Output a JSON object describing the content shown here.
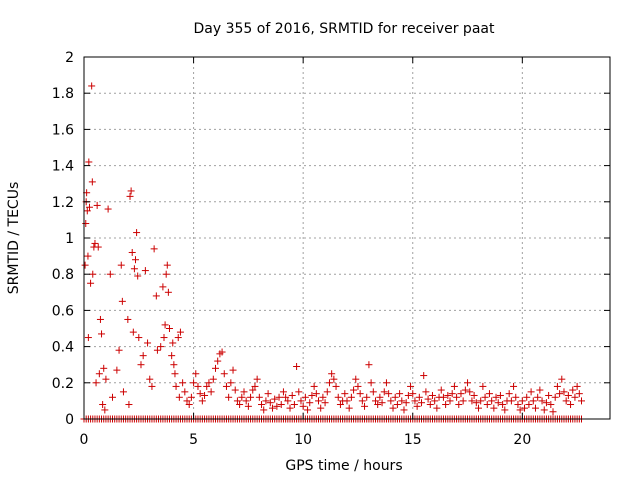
{
  "chart_data": {
    "type": "scatter",
    "title": "Day 355 of 2016, SRMTID for receiver paat",
    "xlabel": "GPS time / hours",
    "ylabel": "SRMTID / TECUs",
    "xlim": [
      0,
      24
    ],
    "ylim": [
      0,
      2
    ],
    "xticks": [
      0,
      5,
      10,
      15,
      20
    ],
    "yticks": [
      0,
      0.2,
      0.4,
      0.6,
      0.8,
      1,
      1.2,
      1.4,
      1.6,
      1.8,
      2
    ],
    "xtick_labels": [
      "0",
      "5",
      "10",
      "15",
      "20"
    ],
    "ytick_labels": [
      "0",
      "0.2",
      "0.4",
      "0.6",
      "0.8",
      "1",
      "1.2",
      "1.4",
      "1.6",
      "1.8",
      "2"
    ],
    "grid": true,
    "marker": "+",
    "color": "#cc0000",
    "series": [
      {
        "name": "SRMTID",
        "points": [
          [
            0.05,
            0.85
          ],
          [
            0.08,
            1.08
          ],
          [
            0.1,
            1.2
          ],
          [
            0.12,
            1.25
          ],
          [
            0.15,
            1.15
          ],
          [
            0.18,
            0.9
          ],
          [
            0.2,
            0.45
          ],
          [
            0.22,
            1.42
          ],
          [
            0.25,
            1.17
          ],
          [
            0.3,
            0.75
          ],
          [
            0.35,
            1.84
          ],
          [
            0.38,
            1.31
          ],
          [
            0.4,
            0.8
          ],
          [
            0.45,
            0.95
          ],
          [
            0.5,
            0.97
          ],
          [
            0.55,
            0.2
          ],
          [
            0.6,
            1.18
          ],
          [
            0.65,
            0.95
          ],
          [
            0.7,
            0.25
          ],
          [
            0.75,
            0.55
          ],
          [
            0.8,
            0.47
          ],
          [
            0.85,
            0.08
          ],
          [
            0.9,
            0.28
          ],
          [
            0.95,
            0.05
          ],
          [
            1.0,
            0.22
          ],
          [
            1.1,
            1.16
          ],
          [
            1.2,
            0.8
          ],
          [
            1.3,
            0.12
          ],
          [
            1.5,
            0.27
          ],
          [
            1.6,
            0.38
          ],
          [
            1.7,
            0.85
          ],
          [
            1.75,
            0.65
          ],
          [
            1.8,
            0.15
          ],
          [
            2.0,
            0.55
          ],
          [
            2.05,
            0.08
          ],
          [
            2.1,
            1.23
          ],
          [
            2.15,
            1.26
          ],
          [
            2.2,
            0.92
          ],
          [
            2.25,
            0.48
          ],
          [
            2.3,
            0.83
          ],
          [
            2.35,
            0.88
          ],
          [
            2.4,
            1.03
          ],
          [
            2.45,
            0.79
          ],
          [
            2.5,
            0.45
          ],
          [
            2.6,
            0.3
          ],
          [
            2.7,
            0.35
          ],
          [
            2.8,
            0.82
          ],
          [
            2.9,
            0.42
          ],
          [
            3.0,
            0.22
          ],
          [
            3.1,
            0.18
          ],
          [
            3.2,
            0.94
          ],
          [
            3.3,
            0.68
          ],
          [
            3.35,
            0.38
          ],
          [
            3.5,
            0.4
          ],
          [
            3.6,
            0.73
          ],
          [
            3.65,
            0.45
          ],
          [
            3.7,
            0.52
          ],
          [
            3.75,
            0.8
          ],
          [
            3.8,
            0.85
          ],
          [
            3.85,
            0.7
          ],
          [
            3.9,
            0.5
          ],
          [
            4.0,
            0.35
          ],
          [
            4.05,
            0.42
          ],
          [
            4.1,
            0.3
          ],
          [
            4.15,
            0.25
          ],
          [
            4.2,
            0.18
          ],
          [
            4.3,
            0.45
          ],
          [
            4.35,
            0.12
          ],
          [
            4.4,
            0.48
          ],
          [
            4.5,
            0.2
          ],
          [
            4.6,
            0.15
          ],
          [
            4.7,
            0.1
          ],
          [
            4.8,
            0.08
          ],
          [
            4.9,
            0.12
          ],
          [
            5.0,
            0.2
          ],
          [
            5.1,
            0.25
          ],
          [
            5.2,
            0.18
          ],
          [
            5.3,
            0.14
          ],
          [
            5.4,
            0.1
          ],
          [
            5.5,
            0.13
          ],
          [
            5.6,
            0.18
          ],
          [
            5.7,
            0.2
          ],
          [
            5.8,
            0.15
          ],
          [
            5.9,
            0.22
          ],
          [
            6.0,
            0.28
          ],
          [
            6.1,
            0.32
          ],
          [
            6.2,
            0.36
          ],
          [
            6.3,
            0.37
          ],
          [
            6.4,
            0.25
          ],
          [
            6.5,
            0.18
          ],
          [
            6.6,
            0.12
          ],
          [
            6.7,
            0.2
          ],
          [
            6.8,
            0.27
          ],
          [
            6.9,
            0.16
          ],
          [
            7.0,
            0.1
          ],
          [
            7.1,
            0.08
          ],
          [
            7.2,
            0.12
          ],
          [
            7.3,
            0.15
          ],
          [
            7.4,
            0.1
          ],
          [
            7.5,
            0.07
          ],
          [
            7.6,
            0.12
          ],
          [
            7.7,
            0.16
          ],
          [
            7.8,
            0.18
          ],
          [
            7.9,
            0.22
          ],
          [
            8.0,
            0.12
          ],
          [
            8.1,
            0.08
          ],
          [
            8.2,
            0.05
          ],
          [
            8.3,
            0.1
          ],
          [
            8.4,
            0.14
          ],
          [
            8.5,
            0.09
          ],
          [
            8.6,
            0.06
          ],
          [
            8.7,
            0.11
          ],
          [
            8.8,
            0.07
          ],
          [
            8.9,
            0.12
          ],
          [
            9.0,
            0.08
          ],
          [
            9.1,
            0.15
          ],
          [
            9.2,
            0.12
          ],
          [
            9.3,
            0.1
          ],
          [
            9.4,
            0.06
          ],
          [
            9.5,
            0.13
          ],
          [
            9.6,
            0.08
          ],
          [
            9.7,
            0.29
          ],
          [
            9.8,
            0.15
          ],
          [
            9.9,
            0.1
          ],
          [
            10.0,
            0.07
          ],
          [
            10.1,
            0.12
          ],
          [
            10.2,
            0.05
          ],
          [
            10.3,
            0.09
          ],
          [
            10.4,
            0.13
          ],
          [
            10.5,
            0.18
          ],
          [
            10.6,
            0.14
          ],
          [
            10.7,
            0.1
          ],
          [
            10.8,
            0.06
          ],
          [
            10.9,
            0.12
          ],
          [
            11.0,
            0.09
          ],
          [
            11.1,
            0.15
          ],
          [
            11.2,
            0.2
          ],
          [
            11.3,
            0.25
          ],
          [
            11.4,
            0.22
          ],
          [
            11.5,
            0.18
          ],
          [
            11.6,
            0.12
          ],
          [
            11.7,
            0.08
          ],
          [
            11.8,
            0.1
          ],
          [
            11.9,
            0.14
          ],
          [
            12.0,
            0.1
          ],
          [
            12.1,
            0.06
          ],
          [
            12.2,
            0.12
          ],
          [
            12.3,
            0.16
          ],
          [
            12.4,
            0.22
          ],
          [
            12.5,
            0.18
          ],
          [
            12.6,
            0.14
          ],
          [
            12.7,
            0.1
          ],
          [
            12.8,
            0.07
          ],
          [
            12.9,
            0.12
          ],
          [
            13.0,
            0.3
          ],
          [
            13.1,
            0.2
          ],
          [
            13.2,
            0.15
          ],
          [
            13.3,
            0.1
          ],
          [
            13.4,
            0.08
          ],
          [
            13.5,
            0.12
          ],
          [
            13.6,
            0.09
          ],
          [
            13.7,
            0.15
          ],
          [
            13.8,
            0.2
          ],
          [
            13.9,
            0.14
          ],
          [
            14.0,
            0.1
          ],
          [
            14.1,
            0.06
          ],
          [
            14.2,
            0.12
          ],
          [
            14.3,
            0.08
          ],
          [
            14.4,
            0.14
          ],
          [
            14.5,
            0.1
          ],
          [
            14.6,
            0.05
          ],
          [
            14.7,
            0.09
          ],
          [
            14.8,
            0.13
          ],
          [
            14.9,
            0.18
          ],
          [
            15.0,
            0.14
          ],
          [
            15.1,
            0.1
          ],
          [
            15.2,
            0.07
          ],
          [
            15.3,
            0.12
          ],
          [
            15.4,
            0.09
          ],
          [
            15.5,
            0.24
          ],
          [
            15.6,
            0.15
          ],
          [
            15.7,
            0.11
          ],
          [
            15.8,
            0.08
          ],
          [
            15.9,
            0.13
          ],
          [
            16.0,
            0.1
          ],
          [
            16.1,
            0.06
          ],
          [
            16.2,
            0.12
          ],
          [
            16.3,
            0.16
          ],
          [
            16.4,
            0.12
          ],
          [
            16.5,
            0.08
          ],
          [
            16.6,
            0.13
          ],
          [
            16.7,
            0.1
          ],
          [
            16.8,
            0.14
          ],
          [
            16.9,
            0.18
          ],
          [
            17.0,
            0.12
          ],
          [
            17.1,
            0.08
          ],
          [
            17.2,
            0.14
          ],
          [
            17.3,
            0.1
          ],
          [
            17.4,
            0.16
          ],
          [
            17.5,
            0.2
          ],
          [
            17.6,
            0.15
          ],
          [
            17.7,
            0.1
          ],
          [
            17.8,
            0.13
          ],
          [
            17.9,
            0.09
          ],
          [
            18.0,
            0.06
          ],
          [
            18.1,
            0.1
          ],
          [
            18.2,
            0.18
          ],
          [
            18.3,
            0.12
          ],
          [
            18.4,
            0.08
          ],
          [
            18.5,
            0.14
          ],
          [
            18.6,
            0.1
          ],
          [
            18.7,
            0.06
          ],
          [
            18.8,
            0.12
          ],
          [
            18.9,
            0.09
          ],
          [
            19.0,
            0.13
          ],
          [
            19.1,
            0.08
          ],
          [
            19.2,
            0.05
          ],
          [
            19.3,
            0.1
          ],
          [
            19.4,
            0.14
          ],
          [
            19.5,
            0.1
          ],
          [
            19.6,
            0.18
          ],
          [
            19.7,
            0.12
          ],
          [
            19.8,
            0.08
          ],
          [
            19.9,
            0.05
          ],
          [
            20.0,
            0.1
          ],
          [
            20.1,
            0.06
          ],
          [
            20.2,
            0.12
          ],
          [
            20.3,
            0.08
          ],
          [
            20.4,
            0.15
          ],
          [
            20.5,
            0.1
          ],
          [
            20.6,
            0.06
          ],
          [
            20.7,
            0.12
          ],
          [
            20.8,
            0.16
          ],
          [
            20.9,
            0.1
          ],
          [
            21.0,
            0.05
          ],
          [
            21.1,
            0.09
          ],
          [
            21.2,
            0.13
          ],
          [
            21.3,
            0.08
          ],
          [
            21.4,
            0.04
          ],
          [
            21.5,
            0.12
          ],
          [
            21.6,
            0.18
          ],
          [
            21.7,
            0.14
          ],
          [
            21.8,
            0.22
          ],
          [
            21.9,
            0.15
          ],
          [
            22.0,
            0.1
          ],
          [
            22.1,
            0.13
          ],
          [
            22.2,
            0.08
          ],
          [
            22.3,
            0.16
          ],
          [
            22.4,
            0.12
          ],
          [
            22.5,
            0.18
          ],
          [
            22.6,
            0.14
          ],
          [
            22.7,
            0.1
          ]
        ],
        "baseline_value": 0,
        "baseline_x_range": [
          0,
          22.7
        ],
        "baseline_step": 0.1
      }
    ]
  }
}
